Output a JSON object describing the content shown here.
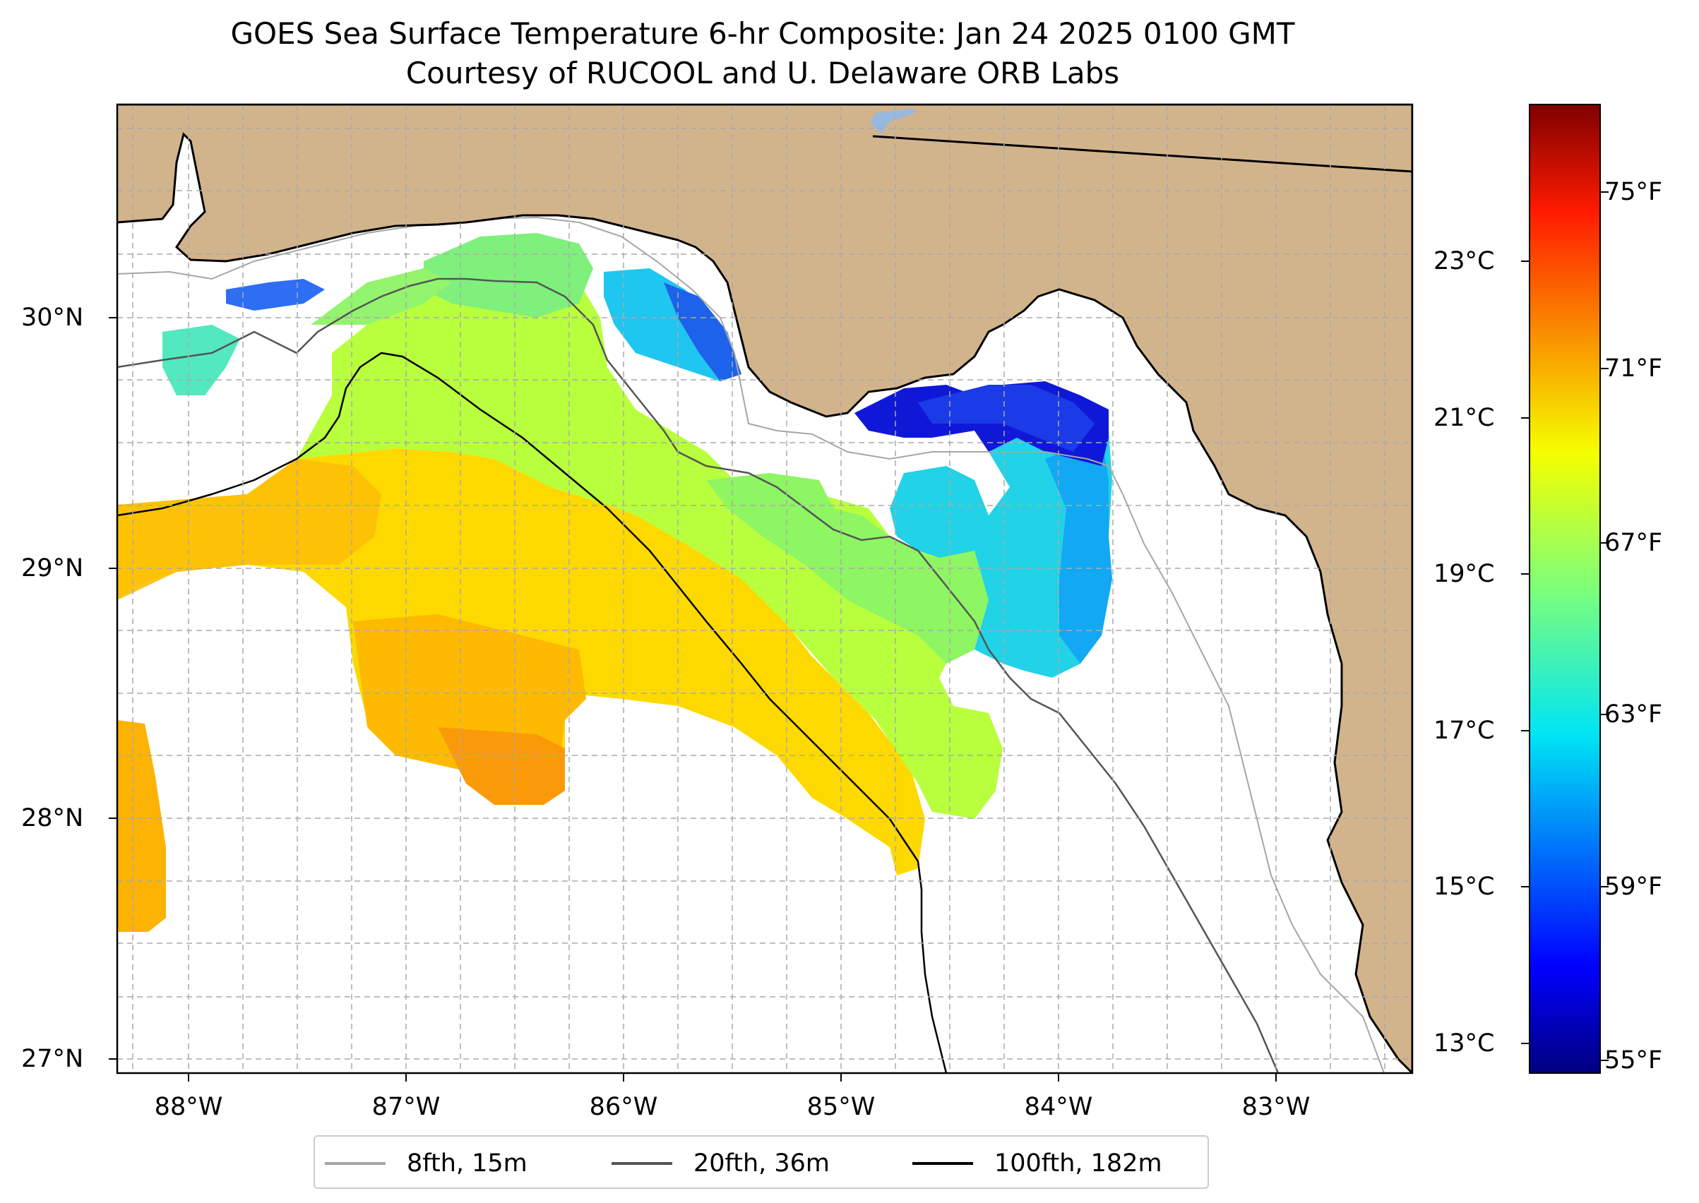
{
  "title_line1": "GOES Sea Surface Temperature 6-hr Composite: Jan 24 2025 0100 GMT",
  "title_line2": "Courtesy of RUCOOL and U. Delaware ORB Labs",
  "x_ticks": [
    "88°W",
    "87°W",
    "86°W",
    "85°W",
    "84°W",
    "83°W"
  ],
  "y_ticks": [
    "30°N",
    "29°N",
    "28°N",
    "27°N"
  ],
  "colorbar_celsius": [
    "23°C",
    "21°C",
    "19°C",
    "17°C",
    "15°C",
    "13°C"
  ],
  "colorbar_fahrenheit": [
    "75°F",
    "71°F",
    "67°F",
    "63°F",
    "59°F",
    "55°F"
  ],
  "legend": [
    {
      "label": "8fth, 15m",
      "color": "#a6a6a6"
    },
    {
      "label": "20fth, 36m",
      "color": "#555555"
    },
    {
      "label": "100fth, 182m",
      "color": "#000000"
    }
  ],
  "colors": {
    "land": "#d2b48c",
    "water_body": "#99b8e0"
  }
}
